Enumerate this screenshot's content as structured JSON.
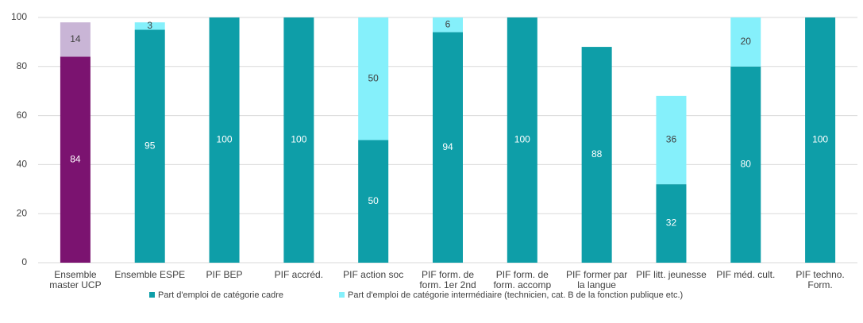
{
  "chart_data": {
    "type": "stacked_bar",
    "categories": [
      "Ensemble master UCP",
      "Ensemble ESPE",
      "PIF BEP",
      "PIF accréd.",
      "PIF action soc",
      "PIF form. de form. 1er 2nd",
      "PIF form. de form. accomp",
      "PIF former par la langue",
      "PIF litt. jeunesse",
      "PIF méd. cult.",
      "PIF techno. Form."
    ],
    "series": [
      {
        "name": "Part d'emploi de catégorie cadre",
        "color": "#0e9ea8",
        "colors": [
          "#7b1370",
          "#0e9ea8",
          "#0e9ea8",
          "#0e9ea8",
          "#0e9ea8",
          "#0e9ea8",
          "#0e9ea8",
          "#0e9ea8",
          "#0e9ea8",
          "#0e9ea8",
          "#0e9ea8"
        ],
        "values": [
          84,
          95,
          100,
          100,
          50,
          94,
          100,
          88,
          32,
          80,
          100
        ]
      },
      {
        "name": "Part d'emploi de catégorie intermédiaire (technicien, cat. B de la fonction publique etc.)",
        "color": "#85f0fb",
        "colors": [
          "#c9b5d6",
          "#85f0fb",
          "#85f0fb",
          "#85f0fb",
          "#85f0fb",
          "#85f0fb",
          "#85f0fb",
          "#85f0fb",
          "#85f0fb",
          "#85f0fb",
          "#85f0fb"
        ],
        "values": [
          14,
          3,
          null,
          null,
          50,
          6,
          null,
          null,
          36,
          20,
          null
        ]
      }
    ],
    "ylim": [
      0,
      100
    ],
    "yticks": [
      0,
      20,
      40,
      60,
      80,
      100
    ],
    "grid": true,
    "legend": "bottom"
  }
}
